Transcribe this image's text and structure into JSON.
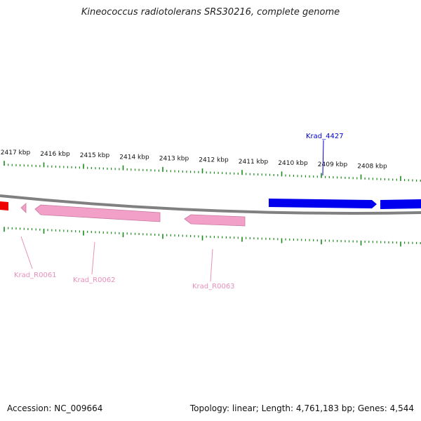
{
  "title": "Kineococcus radiotolerans SRS30216, complete genome",
  "footer": {
    "accession": "Accession: NC_009664",
    "summary": "Topology: linear; Length: 4,761,183 bp; Genes: 4,544"
  },
  "colors": {
    "backbone": "#808080",
    "tick": "#1a8a1a",
    "gene_blue": "#0000ee",
    "gene_pink": "#f3a0c8",
    "gene_red": "#ee0000",
    "label_blue": "#0000cc",
    "label_pink": "#e88fbb"
  },
  "scale_labels": [
    "2417 kbp",
    "2416 kbp",
    "2415 kbp",
    "2414 kbp",
    "2413 kbp",
    "2412 kbp",
    "2411 kbp",
    "2410 kbp",
    "2409 kbp",
    "2408 kbp"
  ],
  "genes": [
    {
      "label": "Krad_4427",
      "strand": "plus",
      "color": "blue"
    },
    {
      "label": "Krad_R0061",
      "strand": "minus",
      "color": "pink"
    },
    {
      "label": "Krad_R0062",
      "strand": "minus",
      "color": "pink"
    },
    {
      "label": "Krad_R0063",
      "strand": "minus",
      "color": "pink"
    }
  ]
}
